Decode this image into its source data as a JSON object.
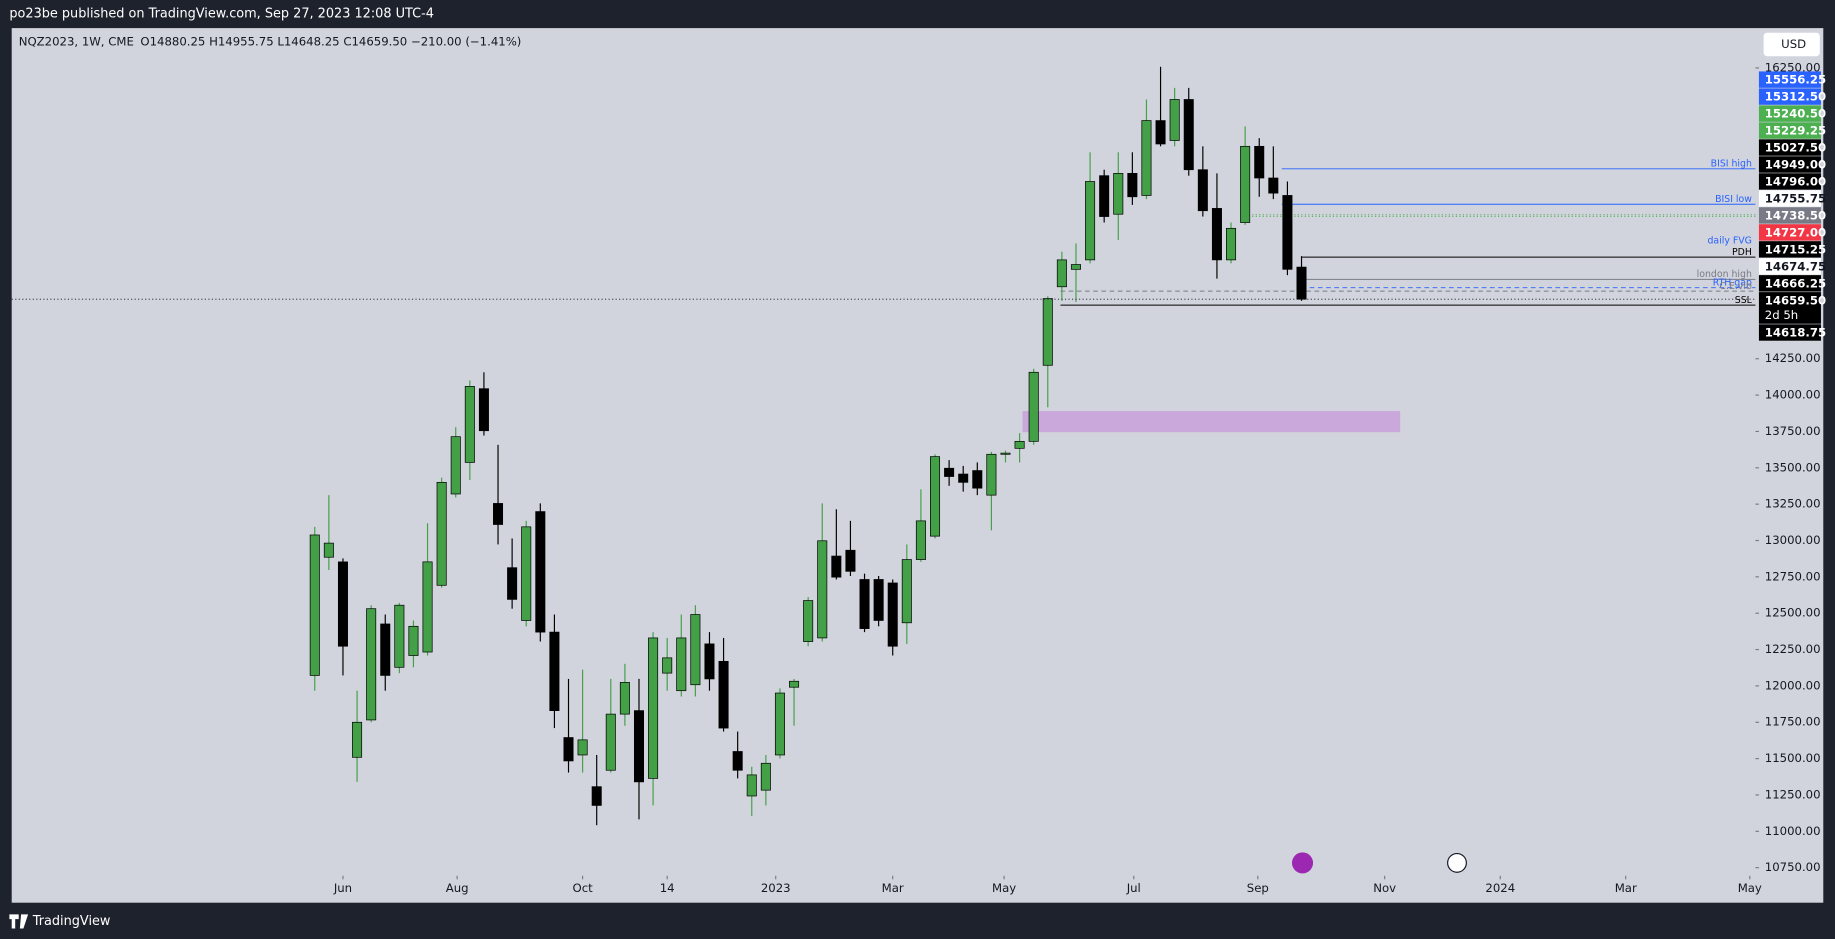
{
  "header": {
    "publisher": "po23be published on TradingView.com, Sep 27, 2023 12:08 UTC-4",
    "symbol": "NQZ2023, 1W, CME",
    "ohlc": "O14880.25  H14955.75  L14648.25  C14659.50  −210.00 (−1.41%)",
    "currency": "USD"
  },
  "footer": {
    "brand": "TradingView"
  },
  "chart_data": {
    "type": "candlestick",
    "open": [
      12072,
      12885,
      12853,
      11509,
      11766,
      12426,
      12128,
      12209,
      12233,
      12692,
      13320,
      13537,
      14044,
      13255,
      12813,
      12450,
      13199,
      12370,
      11645,
      11525,
      11307,
      11420,
      11806,
      11830,
      11364,
      12088,
      11967,
      12008,
      12289,
      12169,
      11549,
      11243,
      11283,
      11525,
      11991,
      12305,
      12330,
      12893,
      12933,
      12732,
      12732,
      12708,
      12434,
      12869,
      13030,
      13497,
      13457,
      13481,
      13312,
      13593,
      13634,
      13682,
      14205,
      14745,
      14865,
      14930,
      15509,
      15244,
      15525,
      15373,
      15888,
      15751,
      16033,
      15550,
      15284,
      14930,
      15187,
      15711,
      15493,
      15373,
      14880.25
    ],
    "high": [
      13094,
      13312,
      12877,
      11967,
      12555,
      12491,
      12571,
      12450,
      13119,
      13432,
      13779,
      14101,
      14157,
      13658,
      13014,
      13135,
      13255,
      12491,
      12048,
      12112,
      11525,
      12048,
      12152,
      12048,
      12370,
      12330,
      12491,
      12555,
      12370,
      12330,
      11686,
      11444,
      11525,
      11983,
      12048,
      12611,
      13255,
      13215,
      13135,
      12772,
      12756,
      12732,
      12973,
      13352,
      13593,
      13553,
      13513,
      13537,
      13610,
      13618,
      13738,
      14181,
      14680,
      14986,
      15043,
      15670,
      15550,
      15670,
      15670,
      16033,
      16258,
      16113,
      16113,
      15711,
      15525,
      15187,
      15848,
      15767,
      15711,
      15469,
      14955.75
    ],
    "low": [
      11967,
      12797,
      12072,
      11340,
      11750,
      11967,
      12088,
      12128,
      12209,
      12676,
      13296,
      13416,
      13722,
      12973,
      12531,
      12410,
      12305,
      11710,
      11404,
      11404,
      11042,
      11404,
      11726,
      11082,
      11178,
      11967,
      11927,
      11927,
      11967,
      11686,
      11364,
      11106,
      11178,
      11501,
      11726,
      12273,
      12305,
      12732,
      12756,
      12370,
      12410,
      12209,
      12289,
      12853,
      13014,
      13376,
      13336,
      13312,
      13070,
      13537,
      13537,
      13658,
      13916,
      14648,
      14640,
      14906,
      15187,
      15067,
      15308,
      15348,
      15711,
      15711,
      15509,
      15228,
      14801,
      14906,
      15171,
      15364,
      15348,
      14825,
      14648.25
    ],
    "close": [
      13038,
      12982,
      12273,
      11750,
      12531,
      12072,
      12555,
      12410,
      12853,
      13400,
      13714,
      14060,
      13755,
      13110,
      12595,
      13094,
      12370,
      11830,
      11484,
      11629,
      11178,
      11806,
      12024,
      11340,
      12330,
      12193,
      12330,
      12491,
      12048,
      11710,
      11420,
      11388,
      11468,
      11951,
      12032,
      12587,
      12998,
      12748,
      12788,
      12394,
      12450,
      12273,
      12869,
      13135,
      13577,
      13440,
      13400,
      13360,
      13593,
      13601,
      13682,
      14157,
      14664,
      14930,
      14898,
      15469,
      15228,
      15525,
      15364,
      15888,
      15727,
      16033,
      15550,
      15268,
      14930,
      15147,
      15711,
      15493,
      15389,
      14865,
      14659.5
    ],
    "up_color": "#43a047",
    "down_color": "#000000",
    "xlim": [
      -21.5,
      102.2
    ],
    "xticks": [
      {
        "value": 2.0,
        "label": "Jun"
      },
      {
        "value": 10.1,
        "label": "Aug"
      },
      {
        "value": 19.0,
        "label": "Oct"
      },
      {
        "value": 25.0,
        "label": "14"
      },
      {
        "value": 32.7,
        "label": "2023"
      },
      {
        "value": 41.0,
        "label": "Mar"
      },
      {
        "value": 48.9,
        "label": "May"
      },
      {
        "value": 58.1,
        "label": "Jul"
      },
      {
        "value": 66.9,
        "label": "Sep"
      },
      {
        "value": 75.9,
        "label": "Nov"
      },
      {
        "value": 84.1,
        "label": "2024"
      },
      {
        "value": 93.0,
        "label": "Mar"
      },
      {
        "value": 101.8,
        "label": "May"
      }
    ],
    "ylim": [
      10509,
      16524
    ],
    "yticks": [
      {
        "value": 16250,
        "label": "16250.00"
      },
      {
        "value": 14250,
        "label": "14250.00"
      },
      {
        "value": 14000,
        "label": "14000.00"
      },
      {
        "value": 13750,
        "label": "13750.00"
      },
      {
        "value": 13500,
        "label": "13500.00"
      },
      {
        "value": 13250,
        "label": "13250.00"
      },
      {
        "value": 13000,
        "label": "13000.00"
      },
      {
        "value": 12750,
        "label": "12750.00"
      },
      {
        "value": 12500,
        "label": "12500.00"
      },
      {
        "value": 12250,
        "label": "12250.00"
      },
      {
        "value": 12000,
        "label": "12000.00"
      },
      {
        "value": 11750,
        "label": "11750.00"
      },
      {
        "value": 11500,
        "label": "11500.00"
      },
      {
        "value": 11250,
        "label": "11250.00"
      },
      {
        "value": 11000,
        "label": "11000.00"
      },
      {
        "value": 10750,
        "label": "10750.00"
      }
    ],
    "price_labels": [
      {
        "value": 15556.25,
        "label": "15556.25",
        "color": "#2962ff"
      },
      {
        "value": 15312.5,
        "label": "15312.50",
        "color": "#2962ff"
      },
      {
        "value": 15240.5,
        "label": "15240.50",
        "color": "#4caf50"
      },
      {
        "value": 15229.25,
        "label": "15229.25",
        "color": "#4caf50"
      },
      {
        "value": 15027.5,
        "label": "15027.50",
        "color": "#000000"
      },
      {
        "value": 14949,
        "label": "14949.00",
        "color": "#000000"
      },
      {
        "value": 14796,
        "label": "14796.00",
        "color": "#000000"
      },
      {
        "value": 14755.75,
        "label": "14755.75",
        "color": "#ffffff"
      },
      {
        "value": 14738.5,
        "label": "14738.50",
        "color": "#787b86"
      },
      {
        "value": 14727,
        "label": "14727.00",
        "color": "#f23645"
      },
      {
        "value": 14715.25,
        "label": "14715.25",
        "color": "#000000"
      },
      {
        "value": 14674.75,
        "label": "14674.75",
        "color": "#ffffff"
      },
      {
        "value": 14666.25,
        "label": "14666.25",
        "color": "#000000"
      },
      {
        "value": 14659.5,
        "label": "14659.50",
        "color": "#000000",
        "countdown": "2d 5h"
      },
      {
        "value": 14618.75,
        "label": "14618.75",
        "color": "#000000"
      }
    ],
    "levels": [
      {
        "name": "BISI high",
        "value": 15556.25,
        "color": "#2962ff",
        "start": 68.6,
        "style": "solid"
      },
      {
        "name": "BISI low",
        "value": 15312.5,
        "color": "#2962ff",
        "start": 68.6,
        "style": "solid"
      },
      {
        "value": 15240.5,
        "color": "#4caf50",
        "start": 66.5,
        "style": "dotted"
      },
      {
        "value": 15229.25,
        "color": "#4caf50",
        "start": 66.5,
        "style": "dotted"
      },
      {
        "name": "daily FVG",
        "value": 15027.5,
        "color": "#2962ff",
        "start": 96,
        "style": "none"
      },
      {
        "name": "PDH",
        "value": 14949,
        "color": "#000000",
        "start": 70,
        "style": "solid"
      },
      {
        "name": "london high",
        "value": 14796,
        "color": "#787b86",
        "start": 70,
        "style": "solid"
      },
      {
        "name": "RTH gap",
        "value": 14738.5,
        "color": "#2962ff",
        "start": 70,
        "style": "dashed"
      },
      {
        "name": "C.E.vib",
        "value": 14715.25,
        "color": "#787b86",
        "start": 52.9,
        "style": "dashed"
      },
      {
        "name": "SSL",
        "value": 14618.75,
        "color": "#000000",
        "start": 52.9,
        "style": "solid"
      }
    ],
    "zones": [
      {
        "top": 13890,
        "bottom": 13745,
        "start": 50.2,
        "end": 77.0,
        "color": "#c9a0dc"
      }
    ]
  }
}
